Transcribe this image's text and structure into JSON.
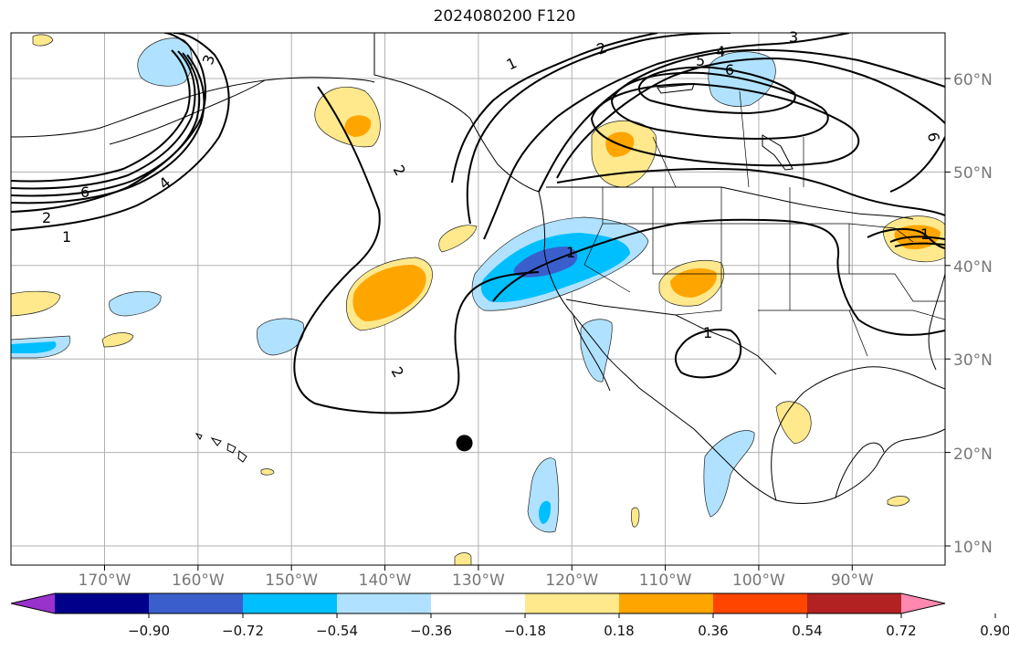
{
  "title": "2024080200 F120",
  "map": {
    "projection": "plate-carree",
    "lon_range": [
      -180,
      -80
    ],
    "lat_range": [
      8,
      65
    ],
    "grid": true,
    "lon_ticks": [
      "170°W",
      "160°W",
      "150°W",
      "140°W",
      "130°W",
      "120°W",
      "110°W",
      "100°W",
      "90°W"
    ],
    "lat_ticks": [
      "10°N",
      "20°N",
      "30°N",
      "40°N",
      "50°N",
      "60°N"
    ],
    "contour_labels": [
      "1",
      "2",
      "3",
      "4",
      "5",
      "6",
      "6",
      "4",
      "2",
      "1",
      "3",
      "2",
      "2",
      "1",
      "1",
      "1",
      "6"
    ],
    "marker": {
      "lon": -131.5,
      "lat": 21,
      "icon": "filled-circle"
    },
    "anomaly_regions": [
      {
        "name": "california-offshore-negative",
        "level": "-0.72"
      },
      {
        "name": "northeast-pacific-positive",
        "level": "0.36"
      },
      {
        "name": "gulf-of-alaska-positive",
        "level": "0.36"
      },
      {
        "name": "pacific-northwest-positive",
        "level": "0.36"
      },
      {
        "name": "four-corners-positive",
        "level": "0.36"
      },
      {
        "name": "great-lakes-positive",
        "level": "0.36"
      }
    ]
  },
  "colorbar": {
    "colors": [
      "#9932CC",
      "#00008B",
      "#3A5FCD",
      "#00BFFF",
      "#B0E2FF",
      "#FFFFFF",
      "#FFE98C",
      "#FFA500",
      "#FF4500",
      "#B22222",
      "#FF88B0"
    ],
    "tick_labels": [
      "−0.90",
      "−0.72",
      "−0.54",
      "−0.36",
      "−0.18",
      "0.18",
      "0.36",
      "0.54",
      "0.72",
      "0.90"
    ]
  }
}
